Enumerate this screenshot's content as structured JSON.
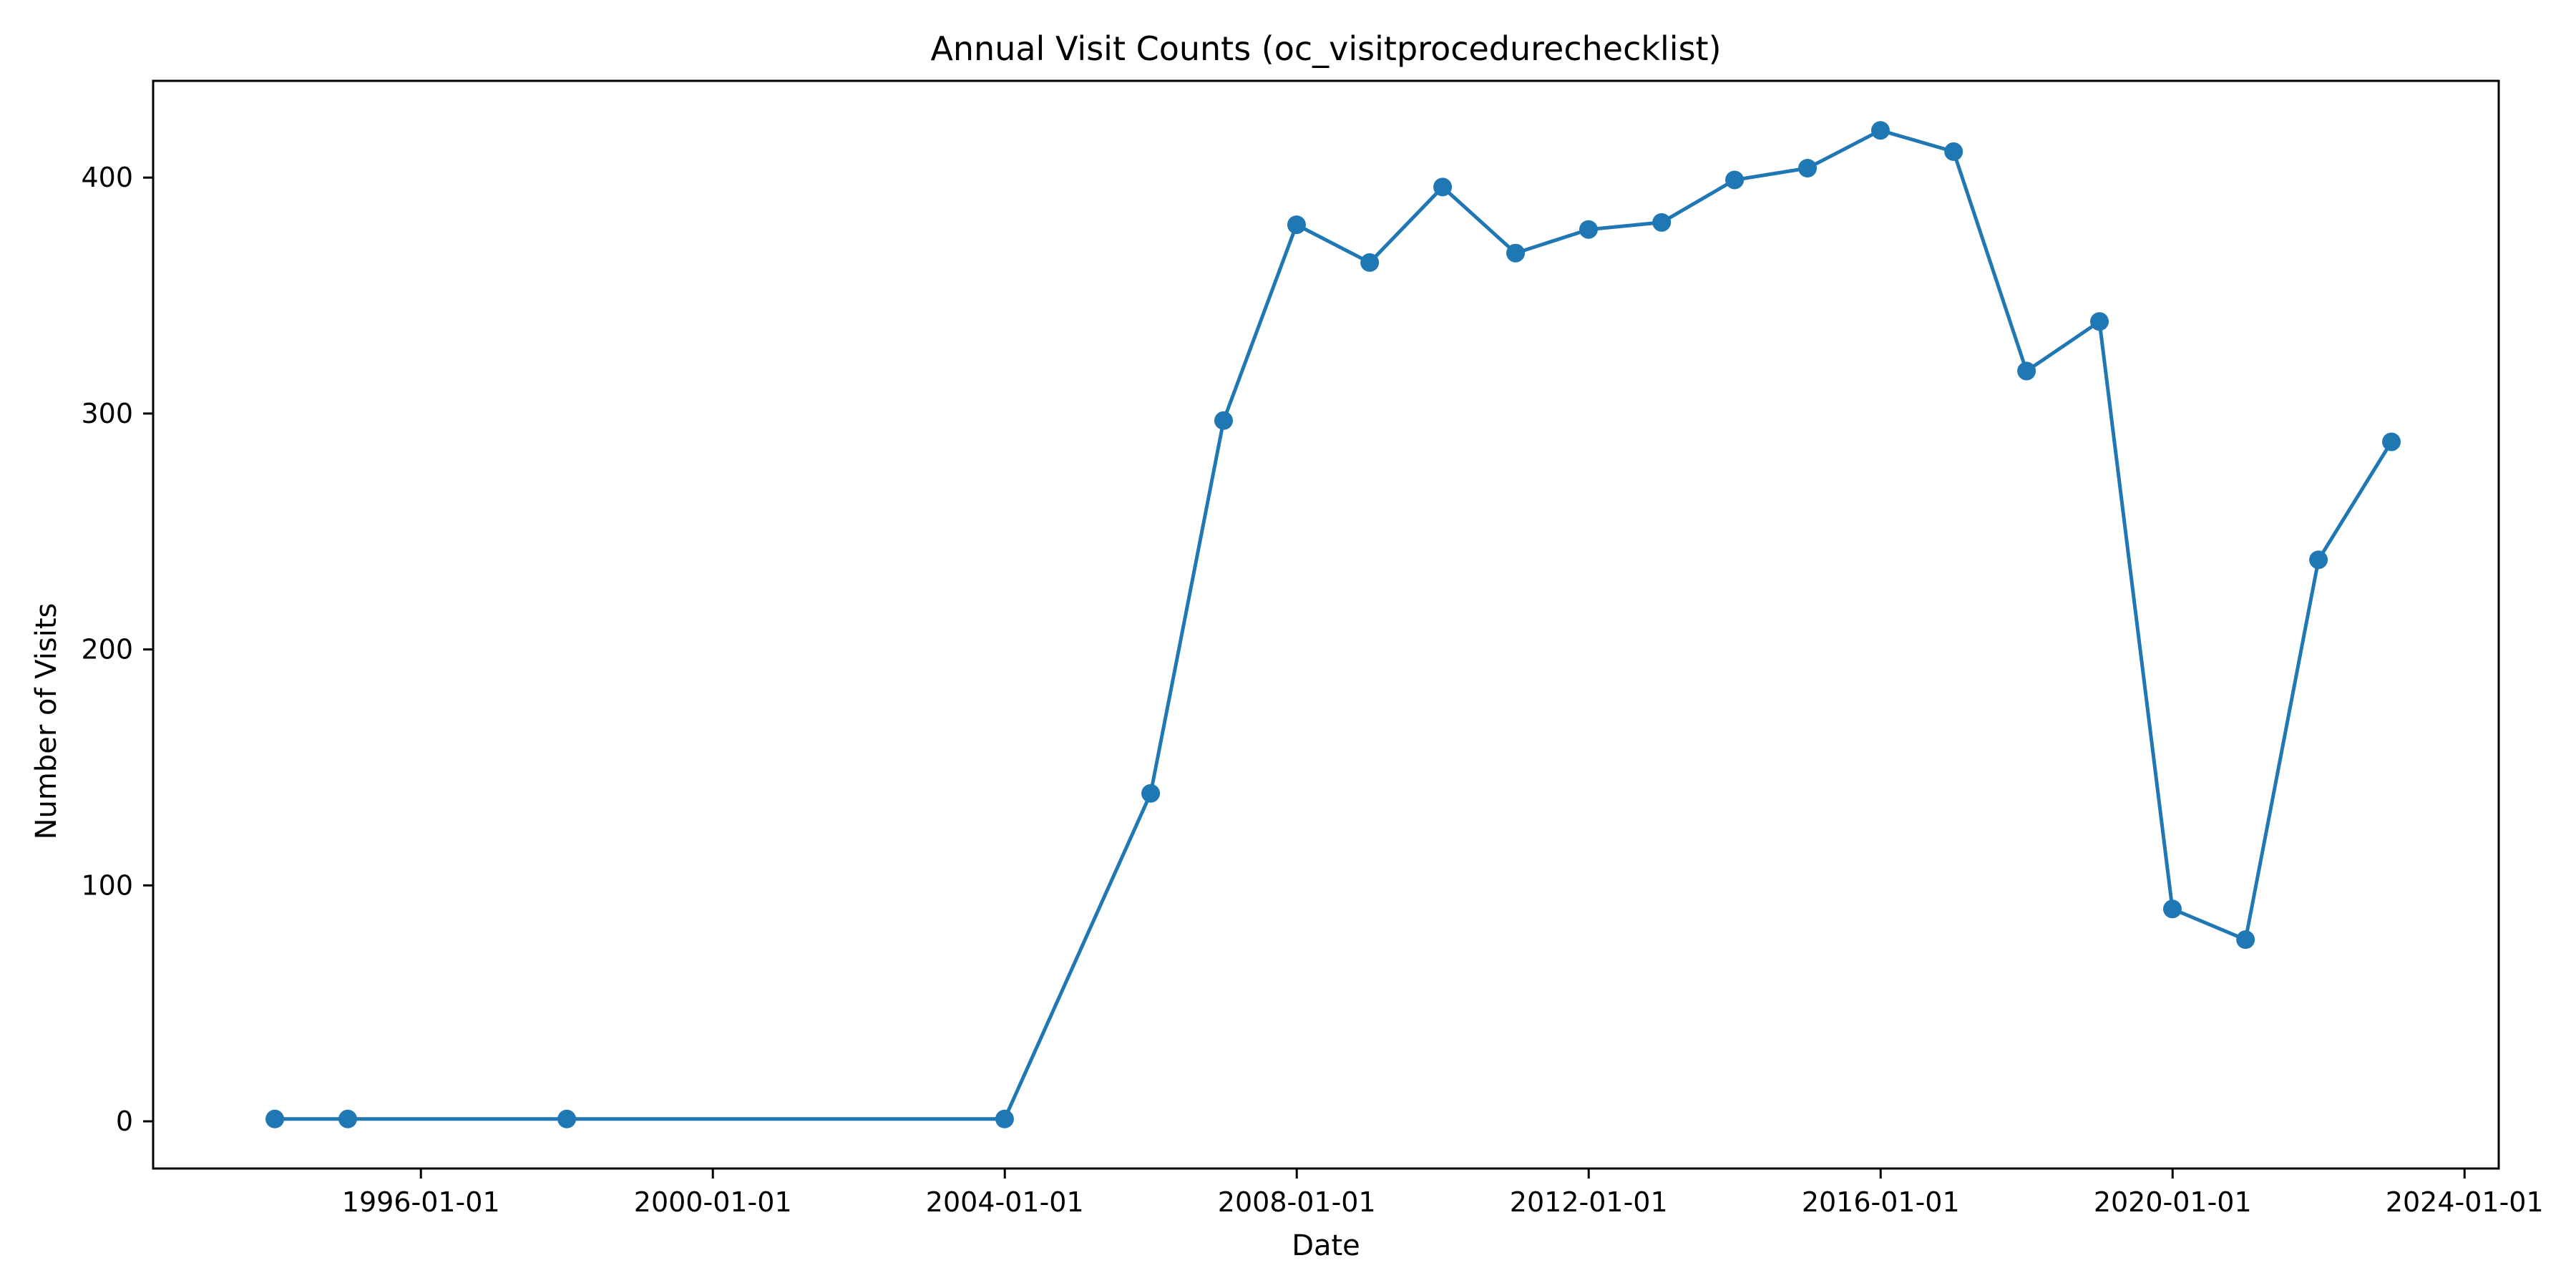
{
  "chart_data": {
    "type": "line",
    "title": "Annual Visit Counts (oc_visitprocedurechecklist)",
    "xlabel": "Date",
    "ylabel": "Number of Visits",
    "x_tick_labels": [
      "1996-01-01",
      "2000-01-01",
      "2004-01-01",
      "2008-01-01",
      "2012-01-01",
      "2016-01-01",
      "2020-01-01",
      "2024-01-01"
    ],
    "y_tick_labels": [
      "0",
      "100",
      "200",
      "300",
      "400"
    ],
    "y_ticks": [
      0,
      100,
      200,
      300,
      400
    ],
    "xlim": [
      "1992-05-01",
      "2024-06-20"
    ],
    "ylim": [
      -20,
      441
    ],
    "grid": false,
    "series": [
      {
        "color": "#1f77b4",
        "marker": "circle",
        "x": [
          "1993-12-31",
          "1994-12-31",
          "1997-12-31",
          "2003-12-31",
          "2005-12-31",
          "2006-12-31",
          "2007-12-31",
          "2008-12-31",
          "2009-12-31",
          "2010-12-31",
          "2011-12-31",
          "2012-12-31",
          "2013-12-31",
          "2014-12-31",
          "2015-12-31",
          "2016-12-31",
          "2017-12-31",
          "2018-12-31",
          "2019-12-31",
          "2020-12-31",
          "2021-12-31",
          "2022-12-31"
        ],
        "y": [
          1,
          1,
          1,
          1,
          139,
          297,
          380,
          364,
          396,
          368,
          378,
          381,
          399,
          404,
          420,
          411,
          318,
          339,
          90,
          77,
          238,
          288
        ]
      }
    ]
  }
}
